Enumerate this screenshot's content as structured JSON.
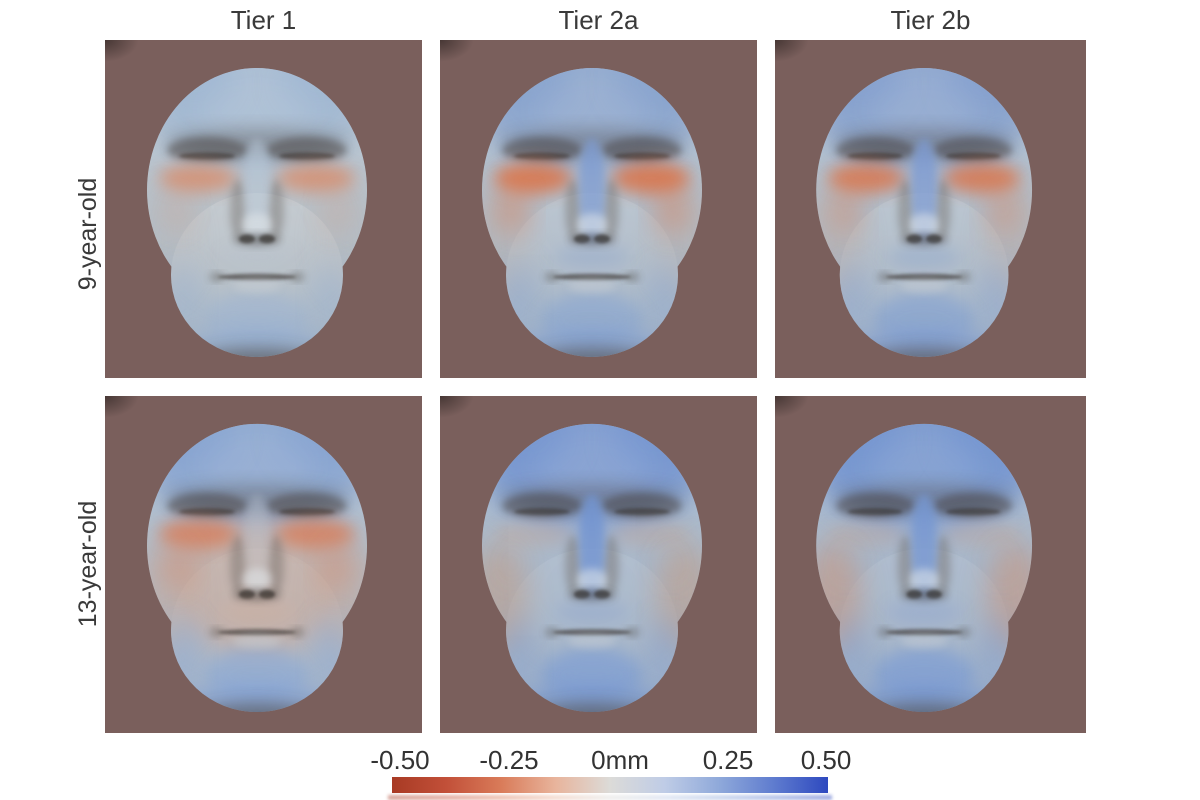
{
  "figure": {
    "background": "#ffffff",
    "panel_bg": "#7a5f5c",
    "column_titles": [
      "Tier 1",
      "Tier 2a",
      "Tier 2b"
    ],
    "row_labels": [
      "9-year-old",
      "13-year-old"
    ],
    "colorbar": {
      "labels": [
        "-0.50",
        "-0.25",
        "0mm",
        "0.25",
        "0.50"
      ],
      "min": -0.5,
      "max": 0.5,
      "units": "mm",
      "gradient": [
        "#a83a24",
        "#c25039",
        "#d97b59",
        "#e8b49c",
        "#dcdbd8",
        "#bfcce6",
        "#8fa9da",
        "#5f7ccf",
        "#2e49bf"
      ]
    }
  },
  "chart_data": {
    "type": "heatmap",
    "title": "",
    "rows": [
      "9-year-old",
      "13-year-old"
    ],
    "columns": [
      "Tier 1",
      "Tier 2a",
      "Tier 2b"
    ],
    "scale": {
      "min": -0.5,
      "max": 0.5,
      "units": "mm",
      "zero_label": "0mm",
      "palette": "diverging red-white-blue",
      "legend_position": "bottom"
    },
    "panels": [
      {
        "row": "9-year-old",
        "column": "Tier 1",
        "regions": {
          "forehead": 0.15,
          "infraorbital": -0.3,
          "cheeks": 0.0,
          "nose_bridge": 0.1,
          "chin": 0.2
        }
      },
      {
        "row": "9-year-old",
        "column": "Tier 2a",
        "regions": {
          "forehead": 0.25,
          "infraorbital": -0.45,
          "cheeks": -0.1,
          "nose_bridge": 0.3,
          "chin": 0.25
        }
      },
      {
        "row": "9-year-old",
        "column": "Tier 2b",
        "regions": {
          "forehead": 0.25,
          "infraorbital": -0.4,
          "cheeks": -0.1,
          "nose_bridge": 0.3,
          "chin": 0.3
        }
      },
      {
        "row": "13-year-old",
        "column": "Tier 1",
        "regions": {
          "forehead": 0.3,
          "infraorbital": -0.35,
          "cheeks": -0.2,
          "nose_bridge": 0.0,
          "chin": 0.3
        }
      },
      {
        "row": "13-year-old",
        "column": "Tier 2a",
        "regions": {
          "forehead": 0.4,
          "infraorbital": -0.05,
          "cheeks": -0.25,
          "nose_bridge": 0.4,
          "chin": 0.35
        }
      },
      {
        "row": "13-year-old",
        "column": "Tier 2b",
        "regions": {
          "forehead": 0.4,
          "infraorbital": -0.05,
          "cheeks": -0.25,
          "nose_bridge": 0.35,
          "chin": 0.35
        }
      }
    ]
  },
  "faces": [
    {
      "base_top": "#c5ced6",
      "base_bottom": "#a9b7c4",
      "forehead": "#8fadd2",
      "forehead_op": 0.45,
      "midface": "#c6c2be",
      "midface_op": 0.22,
      "cheek": "#c2bcb8",
      "cheek_op": 0.25,
      "under_eye": "#db8a66",
      "under_eye_op": 0.75,
      "ue_ry": 14,
      "ue_ext": 0.25,
      "nose_bridge": "#b9c9da",
      "nose_bridge_op": 0.45,
      "upper_lip": "#b6c1cd",
      "upper_lip_op": 0.35,
      "chin": "#9cb3d3",
      "chin_op": 0.55,
      "rim": "#8ca8d2",
      "rim_op": 0.5
    },
    {
      "base_top": "#bcc8d4",
      "base_bottom": "#a6b5c5",
      "forehead": "#7d9bce",
      "forehead_op": 0.62,
      "midface": "#b8bcc2",
      "midface_op": 0.18,
      "cheek": "#c6b2a4",
      "cheek_op": 0.3,
      "under_eye": "#df6f41",
      "under_eye_op": 0.8,
      "ue_ry": 16,
      "ue_ext": 0.5,
      "nose_bridge": "#7d9bd3",
      "nose_bridge_op": 0.7,
      "upper_lip": "#94a9cc",
      "upper_lip_op": 0.5,
      "chin": "#88a5d1",
      "chin_op": 0.62,
      "rim": "#7d9bd0",
      "rim_op": 0.55
    },
    {
      "base_top": "#bdc9d4",
      "base_bottom": "#a6b5c6",
      "forehead": "#7a99ce",
      "forehead_op": 0.65,
      "midface": "#b6bac2",
      "midface_op": 0.18,
      "cheek": "#c9ab99",
      "cheek_op": 0.32,
      "under_eye": "#de7245",
      "under_eye_op": 0.78,
      "ue_ry": 15,
      "ue_ext": 0.4,
      "nose_bridge": "#7b9ad3",
      "nose_bridge_op": 0.7,
      "upper_lip": "#91a7cc",
      "upper_lip_op": 0.5,
      "chin": "#83a1d1",
      "chin_op": 0.66,
      "rim": "#7a99d0",
      "rim_op": 0.58
    },
    {
      "base_top": "#bac6d2",
      "base_bottom": "#a9b7c7",
      "forehead": "#81a0d2",
      "forehead_op": 0.7,
      "midface": "#d2a58e",
      "midface_op": 0.5,
      "cheek": "#cfa68f",
      "cheek_op": 0.35,
      "under_eye": "#db7a52",
      "under_eye_op": 0.75,
      "ue_ry": 15,
      "ue_ext": 0.45,
      "nose_bridge": "#c2cad3",
      "nose_bridge_op": 0.3,
      "upper_lip": "#cfae9c",
      "upper_lip_op": 0.4,
      "chin": "#8aa8d6",
      "chin_op": 0.62,
      "rim": "#7f9ed4",
      "rim_op": 0.58
    },
    {
      "base_top": "#b3c1d1",
      "base_bottom": "#a3b3c6",
      "forehead": "#6f92d0",
      "forehead_op": 0.75,
      "midface": "#a9b4c6",
      "midface_op": 0.18,
      "cheek": "#c89878",
      "cheek_op": 0.45,
      "under_eye": "#cda085",
      "under_eye_op": 0.3,
      "ue_ry": 13,
      "ue_ext": 0.15,
      "nose_bridge": "#7294d2",
      "nose_bridge_op": 0.8,
      "upper_lip": "#8ea6cf",
      "upper_lip_op": 0.45,
      "chin": "#7c9cd4",
      "chin_op": 0.68,
      "rim": "#7495d0",
      "rim_op": 0.6
    },
    {
      "base_top": "#b2c0d1",
      "base_bottom": "#a2b2c6",
      "forehead": "#6f92d0",
      "forehead_op": 0.78,
      "midface": "#a8b3c6",
      "midface_op": 0.18,
      "cheek": "#cc9274",
      "cheek_op": 0.5,
      "under_eye": "#cda085",
      "under_eye_op": 0.28,
      "ue_ry": 13,
      "ue_ext": 0.15,
      "nose_bridge": "#7697d2",
      "nose_bridge_op": 0.78,
      "upper_lip": "#8ca4cf",
      "upper_lip_op": 0.45,
      "chin": "#7c9cd4",
      "chin_op": 0.7,
      "rim": "#7495d0",
      "rim_op": 0.62
    }
  ]
}
